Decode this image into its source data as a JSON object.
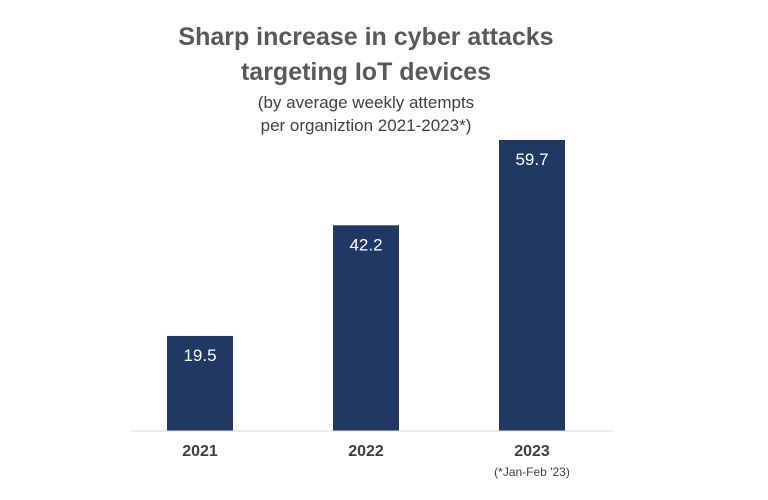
{
  "chart_data": {
    "type": "bar",
    "title": [
      "Sharp increase in cyber attacks",
      "targeting IoT devices"
    ],
    "subtitle": [
      "(by average weekly attempts",
      "per organiztion 2021-2023*)"
    ],
    "categories": [
      "2021",
      "2022",
      "2023"
    ],
    "values": [
      19.5,
      42.2,
      59.7
    ],
    "data_labels": [
      "19.5",
      "42.2",
      "59.7"
    ],
    "footnote": "(*Jan-Feb '23)",
    "xlabel": "",
    "ylabel": "",
    "ylim": [
      0,
      65
    ],
    "grid": false,
    "legend": false,
    "colors": {
      "bar": "#1F3864",
      "axis": "#D9D9D9",
      "title": "#595959",
      "text": "#404040",
      "data_label": "#FFFFFF"
    }
  }
}
